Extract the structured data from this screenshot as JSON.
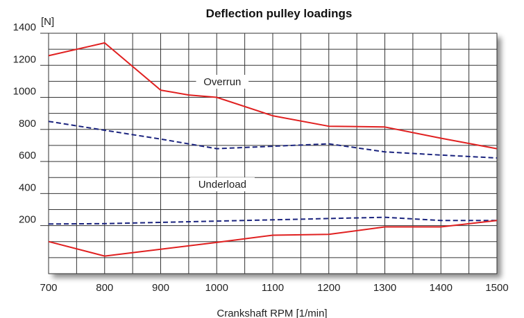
{
  "chart_data": {
    "type": "line",
    "title": "Deflection pulley loadings",
    "xlabel": "Crankshaft RPM [1/min]",
    "ylabel": "[N]",
    "xlim": [
      700,
      1500
    ],
    "ylim": [
      -100,
      1400
    ],
    "x_ticks": [
      700,
      800,
      900,
      1000,
      1100,
      1200,
      1300,
      1400,
      1500
    ],
    "y_ticks": [
      200,
      400,
      600,
      800,
      1000,
      1200,
      1400
    ],
    "grid": true,
    "annotations": [
      "Overrun",
      "Underload"
    ],
    "series": [
      {
        "group": "Overrun",
        "style": "solid",
        "color": "#e02020",
        "x": [
          700,
          800,
          900,
          950,
          1000,
          1100,
          1200,
          1300,
          1400,
          1500
        ],
        "y": [
          1260,
          1340,
          1045,
          1015,
          1000,
          885,
          820,
          815,
          745,
          680
        ]
      },
      {
        "group": "Overrun",
        "style": "dashed",
        "color": "#1a237e",
        "x": [
          700,
          800,
          900,
          1000,
          1100,
          1200,
          1300,
          1400,
          1500
        ],
        "y": [
          850,
          795,
          740,
          680,
          695,
          710,
          660,
          640,
          622
        ]
      },
      {
        "group": "Underload",
        "style": "dashed",
        "color": "#1a237e",
        "x": [
          700,
          800,
          900,
          1000,
          1100,
          1200,
          1300,
          1400,
          1500
        ],
        "y": [
          210,
          212,
          220,
          228,
          236,
          244,
          252,
          232,
          232
        ]
      },
      {
        "group": "Underload",
        "style": "solid",
        "color": "#e02020",
        "x": [
          700,
          800,
          900,
          1000,
          1100,
          1200,
          1300,
          1400,
          1500
        ],
        "y": [
          100,
          10,
          52,
          95,
          140,
          145,
          192,
          192,
          232
        ]
      }
    ]
  }
}
